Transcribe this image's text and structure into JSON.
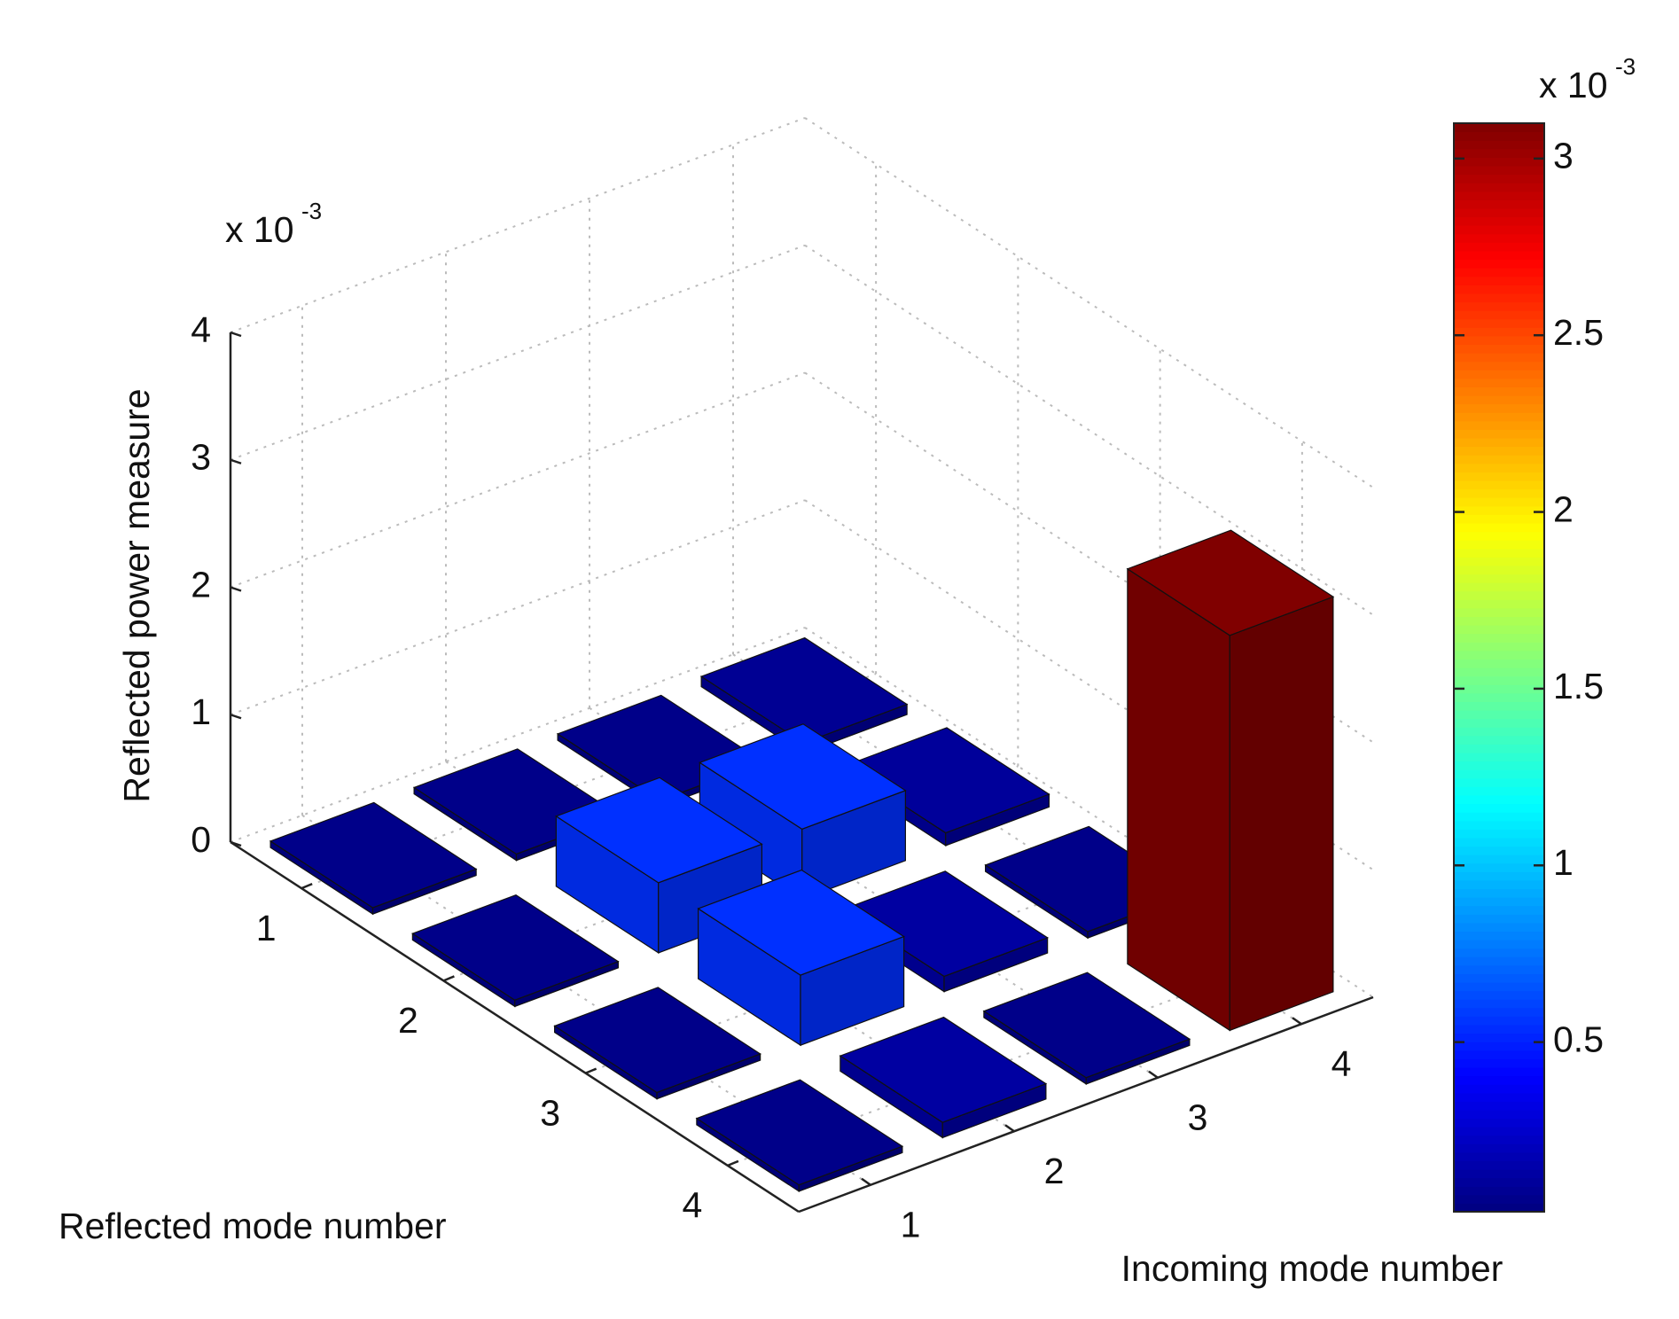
{
  "chart_data": {
    "type": "bar3d",
    "zlabel": "Reflected power measure",
    "xlabel": "Incoming mode number",
    "ylabel": "Reflected mode number",
    "zscale": {
      "base": "x 10",
      "exponent": "-3"
    },
    "xlim": [
      0.5,
      4.5
    ],
    "xticks": [
      1,
      2,
      3,
      4
    ],
    "ylim": [
      0.5,
      4.5
    ],
    "yticks": [
      1,
      2,
      3,
      4
    ],
    "zlim": [
      0,
      4
    ],
    "zticks": [
      0,
      1,
      2,
      3,
      4
    ],
    "grid": true,
    "values": [
      [
        0.05,
        0.05,
        0.05,
        0.08
      ],
      [
        0.05,
        0.55,
        0.55,
        0.1
      ],
      [
        0.05,
        0.55,
        0.12,
        0.05
      ],
      [
        0.05,
        0.12,
        0.05,
        3.1
      ]
    ],
    "colorbar": {
      "colormap": "jet",
      "clim": [
        0.02,
        3.1
      ],
      "ticks": [
        0.5,
        1,
        1.5,
        2,
        2.5,
        3
      ],
      "scale": {
        "base": "x 10",
        "exponent": "-3"
      }
    }
  }
}
